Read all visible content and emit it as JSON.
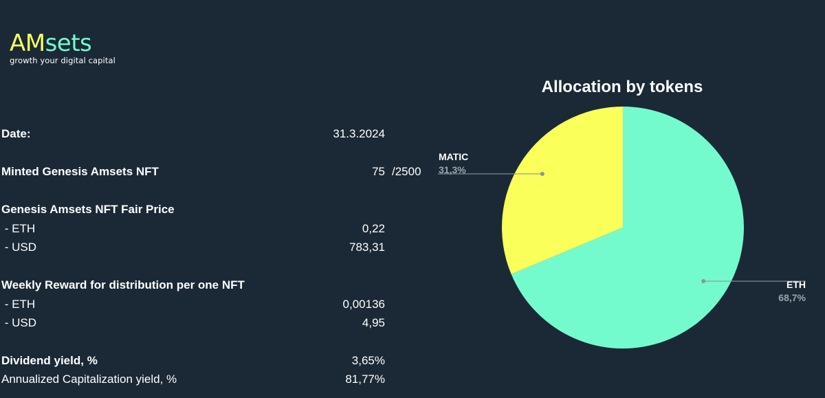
{
  "logo": {
    "part1": "AM",
    "part2": "sets",
    "tagline": "growth your digital capital"
  },
  "rows": {
    "date": {
      "label": "Date:",
      "value": "31.3.2024"
    },
    "minted": {
      "label": "Minted Genesis Amsets NFT",
      "value": "75",
      "extra": "/2500"
    },
    "fair_price": {
      "label": "Genesis Amsets NFT Fair Price"
    },
    "fair_eth": {
      "label": " - ETH",
      "value": "0,22"
    },
    "fair_usd": {
      "label": " - USD",
      "value": "783,31"
    },
    "reward": {
      "label": "Weekly Reward for distribution per one NFT"
    },
    "reward_eth": {
      "label": " - ETH",
      "value": "0,00136"
    },
    "reward_usd": {
      "label": " - USD",
      "value": "4,95"
    },
    "dividend": {
      "label": "Dividend yield, %",
      "value": "3,65%"
    },
    "annualized": {
      "label": "Annualized Capitalization yield, %",
      "value": "81,77%"
    }
  },
  "chart_data": {
    "type": "pie",
    "title": "Allocation by tokens",
    "slices": [
      {
        "name": "ETH",
        "value": 68.7,
        "label": "68,7%",
        "color": "#74fbcd"
      },
      {
        "name": "MATIC",
        "value": 31.3,
        "label": "31,3%",
        "color": "#faff5a"
      }
    ],
    "start": "12 o'clock",
    "direction": "clockwise",
    "legend": "none",
    "label_color": "#ffffff",
    "value_label_color": "#9aa4ad"
  }
}
